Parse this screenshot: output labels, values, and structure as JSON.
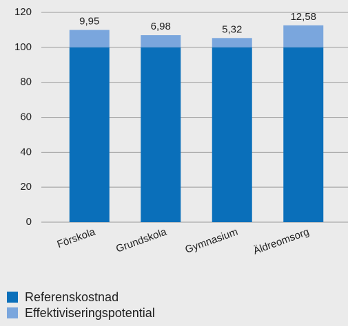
{
  "chart_data": {
    "type": "stacked_bar",
    "categories": [
      "Förskola",
      "Grundskola",
      "Gymnasium",
      "Äldreomsorg"
    ],
    "series": [
      {
        "name": "Referenskostnad",
        "color": "#0a6fba",
        "values": [
          100,
          100,
          100,
          100
        ]
      },
      {
        "name": "Effektiviseringspotential",
        "color": "#7aa6dd",
        "values": [
          9.95,
          6.98,
          5.32,
          12.58
        ],
        "value_labels": [
          "9,95",
          "6,98",
          "5,32",
          "12,58"
        ]
      }
    ],
    "ylim": [
      0,
      120
    ],
    "yticks": [
      0,
      20,
      40,
      60,
      80,
      100,
      120
    ],
    "grid": true,
    "legend": "bottom-left"
  }
}
